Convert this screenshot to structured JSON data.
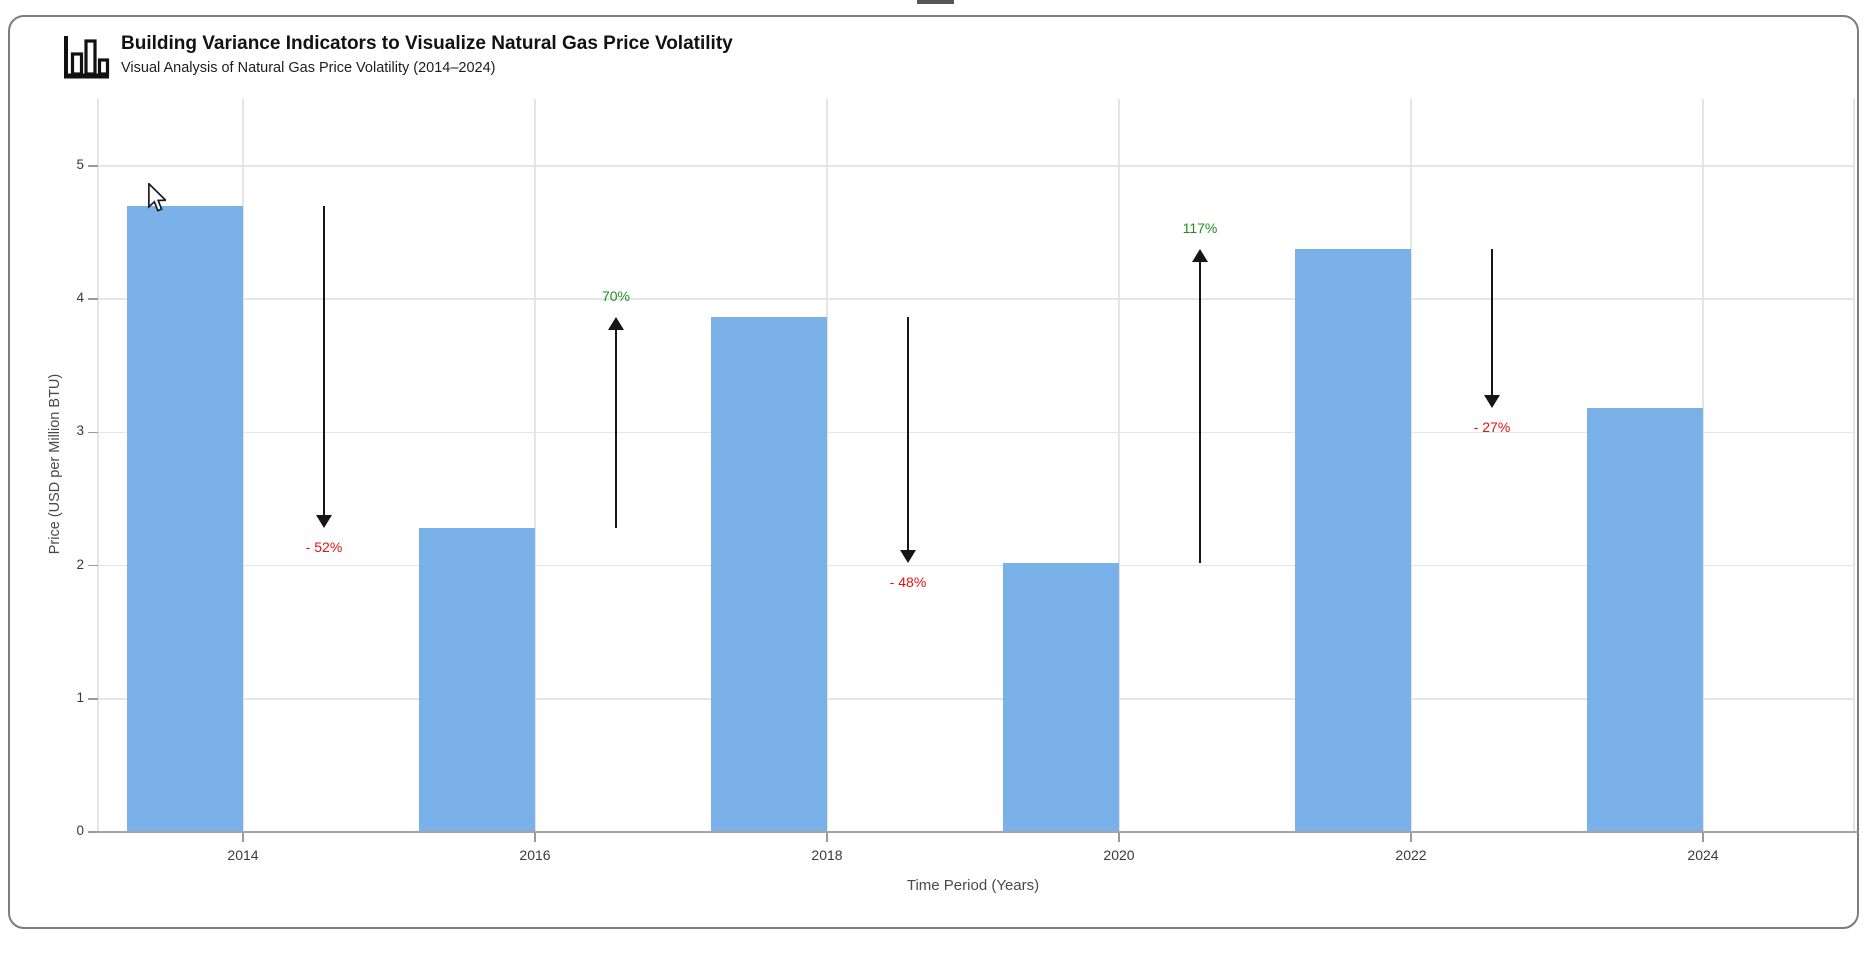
{
  "header": {
    "icon": "bar-chart-icon",
    "title": "Building Variance Indicators to Visualize Natural Gas Price Volatility",
    "subtitle": "Visual Analysis of Natural Gas Price Volatility (2014–2024)"
  },
  "chart_data": {
    "type": "bar",
    "title": "Building Variance Indicators to Visualize Natural Gas Price Volatility",
    "subtitle": "Visual Analysis of Natural Gas Price Volatility (2014–2024)",
    "xlabel": "Time Period (Years)",
    "ylabel": "Price (USD per Million BTU)",
    "categories": [
      "2014",
      "2016",
      "2018",
      "2020",
      "2022",
      "2024"
    ],
    "values": [
      4.7,
      2.28,
      3.87,
      2.02,
      4.38,
      3.18
    ],
    "ylim": [
      0,
      5.5
    ],
    "yticks": [
      0,
      1,
      2,
      3,
      4,
      5
    ],
    "grid": true,
    "legend": "none",
    "bar_color": "#79b1e8",
    "annotations": [
      {
        "from": "2014",
        "to": "2016",
        "label": "- 52%",
        "direction": "down",
        "color": "#e01212"
      },
      {
        "from": "2016",
        "to": "2018",
        "label": "70%",
        "direction": "up",
        "color": "#1f8f1f"
      },
      {
        "from": "2018",
        "to": "2020",
        "label": "- 48%",
        "direction": "down",
        "color": "#e01212"
      },
      {
        "from": "2020",
        "to": "2022",
        "label": "117%",
        "direction": "up",
        "color": "#1f8f1f"
      },
      {
        "from": "2022",
        "to": "2024",
        "label": "- 27%",
        "direction": "down",
        "color": "#e01212"
      }
    ],
    "arrow_color": "#161616"
  }
}
